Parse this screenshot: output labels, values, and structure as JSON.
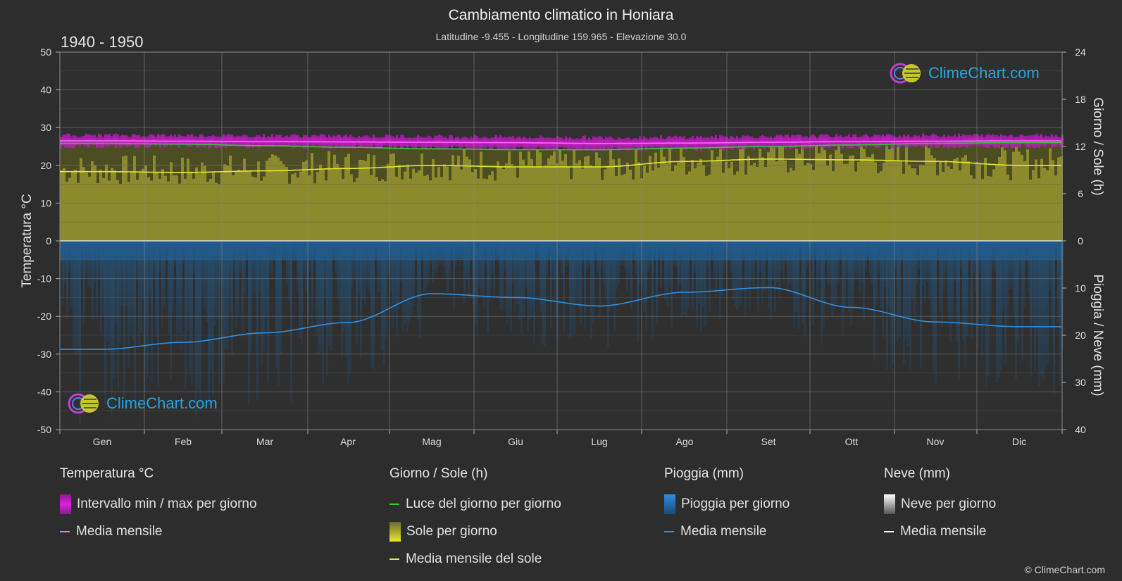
{
  "header": {
    "title": "Cambiamento climatico in Honiara",
    "subtitle": "Latitudine -9.455 - Longitudine 159.965 - Elevazione 30.0",
    "range": "1940 - 1950"
  },
  "logo": {
    "text": "ClimeChart.com"
  },
  "copyright": "© ClimeChart.com",
  "legend": {
    "temperature": {
      "title": "Temperatura °C",
      "items": [
        "Intervallo min / max per giorno",
        "Media mensile"
      ]
    },
    "sun": {
      "title": "Giorno / Sole (h)",
      "items": [
        "Luce del giorno per giorno",
        "Sole per giorno",
        "Media mensile del sole"
      ]
    },
    "rain": {
      "title": "Pioggia (mm)",
      "items": [
        "Pioggia per giorno",
        "Media mensile"
      ]
    },
    "snow": {
      "title": "Neve (mm)",
      "items": [
        "Neve per giorno",
        "Media mensile"
      ]
    }
  },
  "colors": {
    "temp_range": "#d61ad6",
    "temp_mean": "#ff66ff",
    "daylight": "#33cc33",
    "sun_fill": "#9d9d2a",
    "sun_mean": "#e8e830",
    "rain_fill": "#1c5f99",
    "rain_mean": "#2f8fe0",
    "snow_fill": "#ffffff",
    "snow_mean": "#ffffff",
    "grid": "#5a5a5a"
  },
  "chart_data": {
    "type": "line",
    "months": [
      "Gen",
      "Feb",
      "Mar",
      "Apr",
      "Mag",
      "Giu",
      "Lug",
      "Ago",
      "Set",
      "Ott",
      "Nov",
      "Dic"
    ],
    "axes": {
      "left": {
        "label": "Temperatura °C",
        "min": -50,
        "max": 50,
        "ticks": [
          50,
          40,
          30,
          20,
          10,
          0,
          -10,
          -20,
          -30,
          -40,
          -50
        ]
      },
      "right_top": {
        "label": "Giorno / Sole (h)",
        "min": 0,
        "max": 24,
        "ticks": [
          24,
          18,
          12,
          6,
          0
        ]
      },
      "right_bottom": {
        "label": "Pioggia / Neve (mm)",
        "min": 0,
        "max": 40,
        "ticks": [
          0,
          10,
          20,
          30,
          40
        ]
      }
    },
    "series": [
      {
        "name": "Media mensile",
        "group": "temperature",
        "unit": "°C",
        "values": [
          26.5,
          26.4,
          26.3,
          26.2,
          26.1,
          26.0,
          25.8,
          25.9,
          26.1,
          26.3,
          26.4,
          26.5
        ]
      },
      {
        "name": "Intervallo min / max per giorno (max)",
        "group": "temperature",
        "unit": "°C",
        "values": [
          28.0,
          28.0,
          27.9,
          27.8,
          27.7,
          27.5,
          27.4,
          27.5,
          27.7,
          27.9,
          28.0,
          28.0
        ]
      },
      {
        "name": "Intervallo min / max per giorno (min)",
        "group": "temperature",
        "unit": "°C",
        "values": [
          25.0,
          25.0,
          24.9,
          24.8,
          24.6,
          24.4,
          24.2,
          24.3,
          24.6,
          24.9,
          25.0,
          25.0
        ]
      },
      {
        "name": "Luce del giorno per giorno",
        "group": "sun",
        "unit": "h",
        "values": [
          12.4,
          12.3,
          12.1,
          11.9,
          11.7,
          11.6,
          11.6,
          11.8,
          12.0,
          12.2,
          12.4,
          12.5
        ]
      },
      {
        "name": "Media mensile del sole",
        "group": "sun",
        "unit": "h",
        "values": [
          8.8,
          8.7,
          8.9,
          9.2,
          9.6,
          9.4,
          9.4,
          10.1,
          10.4,
          10.3,
          10.1,
          9.6
        ]
      },
      {
        "name": "Media mensile",
        "group": "rain",
        "unit": "mm",
        "values": [
          23.0,
          21.5,
          19.5,
          17.3,
          11.2,
          12.0,
          13.8,
          10.9,
          9.9,
          14.1,
          17.2,
          18.2
        ]
      }
    ]
  }
}
